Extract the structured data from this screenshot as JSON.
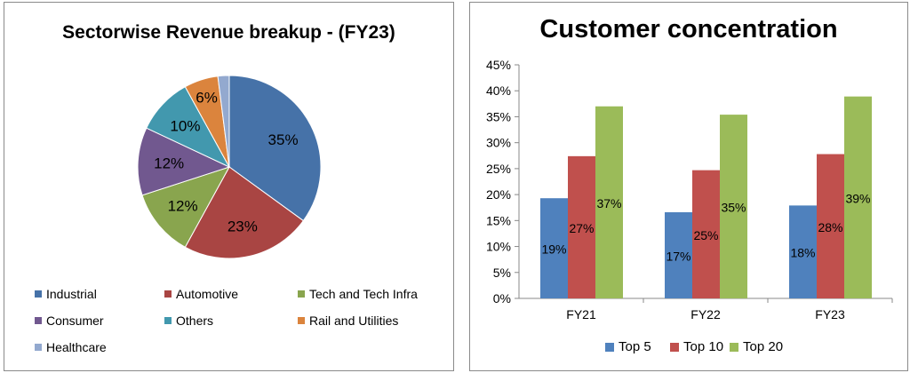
{
  "chart_data": [
    {
      "type": "pie",
      "title": "Sectorwise Revenue breakup - (FY23)",
      "slices": [
        {
          "name": "Industrial",
          "value": 35,
          "label": "35%",
          "color": "#4672a8"
        },
        {
          "name": "Automotive",
          "value": 23,
          "label": "23%",
          "color": "#a94543"
        },
        {
          "name": "Tech and Tech Infra",
          "value": 12,
          "label": "12%",
          "color": "#89a54e"
        },
        {
          "name": "Consumer",
          "value": 12,
          "label": "12%",
          "color": "#71588f"
        },
        {
          "name": "Others",
          "value": 10,
          "label": "10%",
          "color": "#4298ae"
        },
        {
          "name": "Rail and Utilities",
          "value": 6,
          "label": "6%",
          "color": "#db843d"
        },
        {
          "name": "Healthcare",
          "value": 2,
          "label": "",
          "color": "#93a9cf"
        }
      ],
      "legend": "bottom"
    },
    {
      "type": "bar",
      "title": "Customer concentration",
      "categories": [
        "FY21",
        "FY22",
        "FY23"
      ],
      "series": [
        {
          "name": "Top 5",
          "values": [
            19.3,
            16.6,
            17.9
          ],
          "labels": [
            "19%",
            "17%",
            "18%"
          ],
          "color": "#4f81bd"
        },
        {
          "name": "Top 10",
          "values": [
            27.4,
            24.7,
            27.8
          ],
          "labels": [
            "27%",
            "25%",
            "28%"
          ],
          "color": "#c0504d"
        },
        {
          "name": "Top 20",
          "values": [
            37.0,
            35.4,
            38.9
          ],
          "labels": [
            "37%",
            "35%",
            "39%"
          ],
          "color": "#9bbb59"
        }
      ],
      "ylim": [
        0,
        45
      ],
      "yticks": [
        "0%",
        "5%",
        "10%",
        "15%",
        "20%",
        "25%",
        "30%",
        "35%",
        "40%",
        "45%"
      ],
      "legend": "bottom"
    }
  ]
}
